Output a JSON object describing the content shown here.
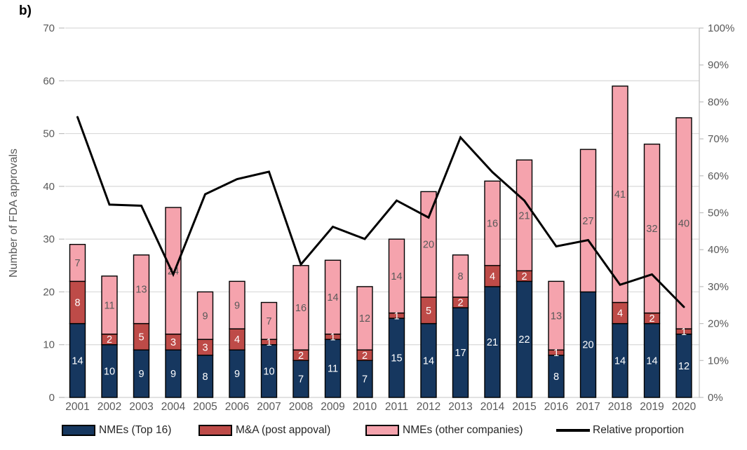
{
  "chart_data": {
    "type": "bar",
    "subtype": "stacked-bars-with-line-overlay",
    "panel_label": "b)",
    "categories": [
      "2001",
      "2002",
      "2003",
      "2004",
      "2005",
      "2006",
      "2007",
      "2008",
      "2009",
      "2010",
      "2011",
      "2012",
      "2013",
      "2014",
      "2015",
      "2016",
      "2017",
      "2018",
      "2019",
      "2020"
    ],
    "series": [
      {
        "name": "NMEs (Top 16)",
        "color": "#16375F",
        "label_color": "#FFFFFF",
        "values": [
          14,
          10,
          9,
          9,
          8,
          9,
          10,
          7,
          11,
          7,
          15,
          14,
          17,
          21,
          22,
          8,
          20,
          14,
          14,
          12
        ]
      },
      {
        "name": "M&A (post appoval)",
        "color": "#BE4B48",
        "label_color": "#FFFFFF",
        "values": [
          8,
          2,
          5,
          3,
          3,
          4,
          1,
          2,
          1,
          2,
          1,
          5,
          2,
          4,
          2,
          1,
          0,
          4,
          2,
          1
        ]
      },
      {
        "name": "NMEs (other companies)",
        "color": "#F5A3AD",
        "label_color": "#595959",
        "values": [
          7,
          11,
          13,
          24,
          9,
          9,
          7,
          16,
          14,
          12,
          14,
          20,
          8,
          16,
          21,
          13,
          27,
          41,
          32,
          40
        ]
      }
    ],
    "bar_totals": [
      29,
      23,
      27,
      36,
      20,
      22,
      18,
      25,
      26,
      21,
      30,
      39,
      27,
      41,
      45,
      22,
      47,
      59,
      48,
      53
    ],
    "line_series": {
      "name": "Relative proportion",
      "color": "#000000",
      "axis": "right",
      "values_pct": [
        75.9,
        52.2,
        51.9,
        33.3,
        55.0,
        59.1,
        61.1,
        36.0,
        46.2,
        42.9,
        53.3,
        48.7,
        70.4,
        61.0,
        53.3,
        40.9,
        42.6,
        30.5,
        33.3,
        24.5
      ]
    },
    "left_axis": {
      "label": "Number of FDA approvals",
      "min": 0,
      "max": 70,
      "step": 10,
      "ticks": [
        "0",
        "10",
        "20",
        "30",
        "40",
        "50",
        "60",
        "70"
      ]
    },
    "right_axis": {
      "min": 0,
      "max": 100,
      "step": 10,
      "ticks": [
        "0%",
        "10%",
        "20%",
        "30%",
        "40%",
        "50%",
        "60%",
        "70%",
        "80%",
        "90%",
        "100%"
      ]
    },
    "legend": [
      {
        "label": "NMEs (Top 16)",
        "style": "box",
        "color": "#16375F"
      },
      {
        "label": "M&A (post appoval)",
        "style": "box",
        "color": "#BE4B48"
      },
      {
        "label": "NMEs (other companies)",
        "style": "box",
        "color": "#F5A3AD"
      },
      {
        "label": "Relative proportion",
        "style": "line",
        "color": "#000000"
      }
    ],
    "grid": {
      "on": true,
      "color": "#D9D9D9",
      "axis_color": "#BFBFBF",
      "text_color": "#595959"
    },
    "legend_position": "bottom"
  }
}
